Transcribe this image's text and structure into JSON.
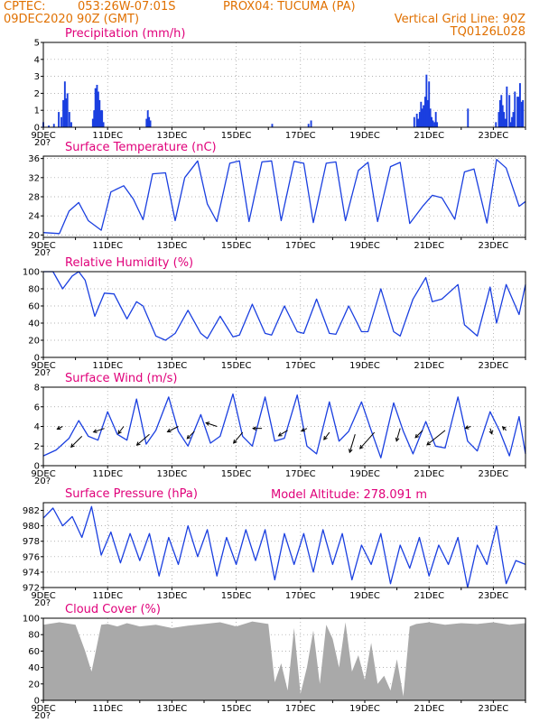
{
  "header": {
    "source": "CPTEC:",
    "coords": "053:26W-07:01S",
    "station": "PROX04: TUCUMA (PA)",
    "run_date": "09DEC2020 90Z (GMT)",
    "vertical_grid": "Vertical Grid Line: 90Z",
    "model_code": "TQ0126L028",
    "model_altitude": "Model Altitude: 278.091 m",
    "clipped_year_label": "20?"
  },
  "colors": {
    "header": "#e07000",
    "panel_title": "#e0007a",
    "series": "#1a3fe0",
    "cloud": "#a9a9a9",
    "grid": "#9a9a9a",
    "frame": "#000000"
  },
  "x_axis": {
    "start": "09DEC2020",
    "days": 15,
    "tick_labels": [
      "9DEC",
      "11DEC",
      "13DEC",
      "15DEC",
      "17DEC",
      "19DEC",
      "21DEC",
      "23DEC"
    ],
    "tick_day_offsets": [
      0,
      2,
      4,
      6,
      8,
      10,
      12,
      14
    ]
  },
  "chart_data": [
    {
      "type": "bar",
      "title": "Precipitation (mm/h)",
      "ylim": [
        0,
        5
      ],
      "yticks": [
        0,
        1,
        2,
        3,
        4,
        5
      ],
      "grid": true,
      "x": [
        0.0,
        0.17,
        0.33,
        0.48,
        0.56,
        0.62,
        0.67,
        0.71,
        0.75,
        0.81,
        0.87,
        1.54,
        1.58,
        1.62,
        1.67,
        1.71,
        1.75,
        1.79,
        1.83,
        1.87,
        3.21,
        3.25,
        3.29,
        3.33,
        7.12,
        8.25,
        8.33,
        11.54,
        11.62,
        11.67,
        11.71,
        11.75,
        11.79,
        11.83,
        11.88,
        11.92,
        11.96,
        12.0,
        12.04,
        12.08,
        12.12,
        12.17,
        12.21,
        12.25,
        13.21,
        14.08,
        14.17,
        14.21,
        14.25,
        14.29,
        14.33,
        14.38,
        14.42,
        14.5,
        14.54,
        14.58,
        14.62,
        14.67,
        14.75,
        14.79,
        14.83,
        14.88,
        14.92
      ],
      "values": [
        0.3,
        0.1,
        0.2,
        0.9,
        0.6,
        1.6,
        2.7,
        1.7,
        2.0,
        0.9,
        0.3,
        0.5,
        1.0,
        2.3,
        2.5,
        2.1,
        1.6,
        1.0,
        1.0,
        0.3,
        0.5,
        1.0,
        0.6,
        0.4,
        0.2,
        0.2,
        0.4,
        0.6,
        0.8,
        0.5,
        0.9,
        1.5,
        1.1,
        1.3,
        1.8,
        3.1,
        1.6,
        2.7,
        1.1,
        0.6,
        0.4,
        0.3,
        0.9,
        0.3,
        1.1,
        0.3,
        0.9,
        1.6,
        1.9,
        1.3,
        0.9,
        0.5,
        2.4,
        1.9,
        0.3,
        0.6,
        0.9,
        2.1,
        1.8,
        1.8,
        2.6,
        1.5,
        1.6
      ]
    },
    {
      "type": "line",
      "title": "Surface Temperature (nC)",
      "ylim": [
        19.5,
        36.5
      ],
      "yticks": [
        20,
        24,
        28,
        32,
        36
      ],
      "grid": true,
      "x": [
        0.0,
        0.5,
        0.8,
        1.1,
        1.4,
        1.8,
        2.1,
        2.5,
        2.8,
        3.1,
        3.4,
        3.8,
        4.1,
        4.4,
        4.8,
        5.1,
        5.4,
        5.8,
        6.1,
        6.4,
        6.8,
        7.1,
        7.4,
        7.8,
        8.1,
        8.4,
        8.8,
        9.1,
        9.4,
        9.8,
        10.1,
        10.4,
        10.8,
        11.1,
        11.4,
        11.8,
        12.1,
        12.4,
        12.8,
        13.1,
        13.4,
        13.8,
        14.1,
        14.4,
        14.8,
        15.0
      ],
      "values": [
        20.5,
        20.3,
        25.0,
        26.8,
        23.0,
        21.0,
        29.0,
        30.3,
        27.5,
        23.2,
        32.8,
        33.0,
        23.0,
        32.0,
        35.5,
        26.5,
        22.8,
        35.0,
        35.5,
        22.8,
        35.3,
        35.5,
        23.0,
        35.4,
        35.0,
        22.6,
        35.0,
        35.3,
        23.0,
        33.5,
        35.2,
        22.8,
        34.3,
        35.2,
        22.4,
        26.0,
        28.3,
        27.8,
        23.3,
        33.2,
        33.8,
        22.5,
        35.8,
        34.0,
        26.0,
        27.0
      ]
    },
    {
      "type": "line",
      "title": "Relative Humidity (%)",
      "ylim": [
        0,
        100
      ],
      "yticks": [
        0,
        20,
        40,
        60,
        80,
        100
      ],
      "grid": true,
      "x": [
        0.0,
        0.3,
        0.6,
        0.9,
        1.1,
        1.3,
        1.6,
        1.9,
        2.2,
        2.6,
        2.9,
        3.1,
        3.5,
        3.8,
        4.1,
        4.5,
        4.9,
        5.1,
        5.5,
        5.9,
        6.1,
        6.5,
        6.9,
        7.1,
        7.5,
        7.9,
        8.1,
        8.5,
        8.9,
        9.1,
        9.5,
        9.9,
        10.1,
        10.5,
        10.9,
        11.1,
        11.5,
        11.9,
        12.1,
        12.4,
        12.9,
        13.1,
        13.5,
        13.9,
        14.1,
        14.4,
        14.8,
        15.0
      ],
      "values": [
        100,
        100,
        80,
        95,
        100,
        90,
        48,
        75,
        74,
        45,
        65,
        60,
        25,
        20,
        28,
        55,
        28,
        22,
        48,
        24,
        26,
        62,
        28,
        26,
        60,
        30,
        28,
        68,
        28,
        27,
        60,
        30,
        30,
        80,
        30,
        25,
        68,
        93,
        65,
        68,
        85,
        38,
        25,
        82,
        40,
        85,
        50,
        85
      ]
    },
    {
      "type": "line",
      "title": "Surface Wind (m/s)",
      "ylim": [
        0,
        8
      ],
      "yticks": [
        0,
        2,
        4,
        6,
        8
      ],
      "grid": true,
      "x": [
        0.0,
        0.4,
        0.8,
        1.1,
        1.4,
        1.7,
        2.0,
        2.3,
        2.6,
        2.9,
        3.2,
        3.5,
        3.9,
        4.2,
        4.5,
        4.9,
        5.2,
        5.5,
        5.9,
        6.2,
        6.5,
        6.9,
        7.2,
        7.5,
        7.9,
        8.2,
        8.5,
        8.9,
        9.2,
        9.5,
        9.9,
        10.2,
        10.5,
        10.9,
        11.2,
        11.5,
        11.9,
        12.2,
        12.5,
        12.9,
        13.2,
        13.5,
        13.9,
        14.2,
        14.5,
        14.8,
        15.0
      ],
      "values": [
        1.0,
        1.6,
        2.8,
        4.6,
        3.0,
        2.6,
        5.5,
        3.2,
        2.6,
        6.8,
        2.2,
        3.6,
        7.0,
        3.5,
        2.0,
        5.2,
        2.3,
        3.0,
        7.3,
        3.0,
        2.0,
        7.0,
        2.5,
        2.8,
        7.2,
        2.0,
        1.2,
        6.5,
        2.5,
        3.5,
        6.5,
        3.6,
        0.8,
        6.4,
        3.5,
        1.2,
        4.5,
        2.0,
        1.8,
        7.0,
        2.5,
        1.5,
        5.5,
        3.5,
        1.0,
        5.0,
        1.2
      ],
      "arrows": [
        {
          "x": 0.6,
          "y": 4.0,
          "dx": -6,
          "dy": 3
        },
        {
          "x": 1.2,
          "y": 3.0,
          "dx": -12,
          "dy": 12
        },
        {
          "x": 1.9,
          "y": 3.8,
          "dx": -12,
          "dy": 4
        },
        {
          "x": 2.5,
          "y": 4.0,
          "dx": -6,
          "dy": 8
        },
        {
          "x": 3.3,
          "y": 3.2,
          "dx": -14,
          "dy": 12
        },
        {
          "x": 4.2,
          "y": 4.0,
          "dx": -12,
          "dy": 6
        },
        {
          "x": 4.7,
          "y": 3.5,
          "dx": -8,
          "dy": 8
        },
        {
          "x": 5.4,
          "y": 4.0,
          "dx": -12,
          "dy": -4
        },
        {
          "x": 6.2,
          "y": 3.4,
          "dx": -10,
          "dy": 12
        },
        {
          "x": 6.8,
          "y": 3.8,
          "dx": -10,
          "dy": 0
        },
        {
          "x": 7.6,
          "y": 3.6,
          "dx": -10,
          "dy": 6
        },
        {
          "x": 8.2,
          "y": 3.8,
          "dx": -6,
          "dy": 3
        },
        {
          "x": 8.9,
          "y": 3.4,
          "dx": -6,
          "dy": 8
        },
        {
          "x": 9.7,
          "y": 3.2,
          "dx": -6,
          "dy": 20
        },
        {
          "x": 10.3,
          "y": 3.4,
          "dx": -16,
          "dy": 18
        },
        {
          "x": 11.1,
          "y": 3.8,
          "dx": -4,
          "dy": 14
        },
        {
          "x": 11.8,
          "y": 3.6,
          "dx": -8,
          "dy": 8
        },
        {
          "x": 12.5,
          "y": 3.6,
          "dx": -20,
          "dy": 16
        },
        {
          "x": 13.3,
          "y": 4.0,
          "dx": -6,
          "dy": 2
        },
        {
          "x": 13.9,
          "y": 3.8,
          "dx": 2,
          "dy": 6
        },
        {
          "x": 14.4,
          "y": 3.6,
          "dx": -4,
          "dy": -4
        }
      ]
    },
    {
      "type": "line",
      "title": "Surface Pressure (hPa)",
      "ylim": [
        972,
        983
      ],
      "yticks": [
        972,
        974,
        976,
        978,
        980,
        982
      ],
      "grid": true,
      "x": [
        0.0,
        0.3,
        0.6,
        0.9,
        1.2,
        1.5,
        1.8,
        2.1,
        2.4,
        2.7,
        3.0,
        3.3,
        3.6,
        3.9,
        4.2,
        4.5,
        4.8,
        5.1,
        5.4,
        5.7,
        6.0,
        6.3,
        6.6,
        6.9,
        7.2,
        7.5,
        7.8,
        8.1,
        8.4,
        8.7,
        9.0,
        9.3,
        9.6,
        9.9,
        10.2,
        10.5,
        10.8,
        11.1,
        11.4,
        11.7,
        12.0,
        12.3,
        12.6,
        12.9,
        13.2,
        13.5,
        13.8,
        14.1,
        14.4,
        14.7,
        15.0
      ],
      "values": [
        981.0,
        982.3,
        980.0,
        981.2,
        978.5,
        982.5,
        976.2,
        979.2,
        975.2,
        979.0,
        975.5,
        979.0,
        973.5,
        978.5,
        975.0,
        980.0,
        976.0,
        979.5,
        973.5,
        978.5,
        975.0,
        979.5,
        975.5,
        979.5,
        973.0,
        979.0,
        975.0,
        979.0,
        974.0,
        979.5,
        975.0,
        979.0,
        973.0,
        977.5,
        975.0,
        979.0,
        972.5,
        977.5,
        974.5,
        978.5,
        973.5,
        977.5,
        975.0,
        978.5,
        972.0,
        977.5,
        975.0,
        980.0,
        972.5,
        975.5,
        975.0
      ]
    },
    {
      "type": "area",
      "title": "Cloud Cover (%)",
      "ylim": [
        0,
        100
      ],
      "yticks": [
        0,
        20,
        40,
        60,
        80,
        100
      ],
      "grid": true,
      "x": [
        0.0,
        0.5,
        1.0,
        1.3,
        1.5,
        1.8,
        2.0,
        2.3,
        2.6,
        2.8,
        3.0,
        3.5,
        4.0,
        4.5,
        5.0,
        5.5,
        6.0,
        6.5,
        7.0,
        7.2,
        7.4,
        7.6,
        7.8,
        8.0,
        8.2,
        8.4,
        8.6,
        8.8,
        9.0,
        9.2,
        9.4,
        9.6,
        9.8,
        10.0,
        10.2,
        10.4,
        10.6,
        10.8,
        11.0,
        11.2,
        11.4,
        11.6,
        12.0,
        12.5,
        13.0,
        13.5,
        14.0,
        14.5,
        15.0
      ],
      "values": [
        92,
        95,
        92,
        60,
        35,
        92,
        93,
        90,
        94,
        92,
        90,
        92,
        88,
        91,
        93,
        95,
        90,
        96,
        93,
        22,
        45,
        12,
        88,
        8,
        40,
        85,
        20,
        92,
        75,
        40,
        95,
        35,
        55,
        25,
        70,
        20,
        30,
        12,
        50,
        5,
        90,
        93,
        95,
        92,
        94,
        93,
        95,
        92,
        94
      ]
    }
  ]
}
